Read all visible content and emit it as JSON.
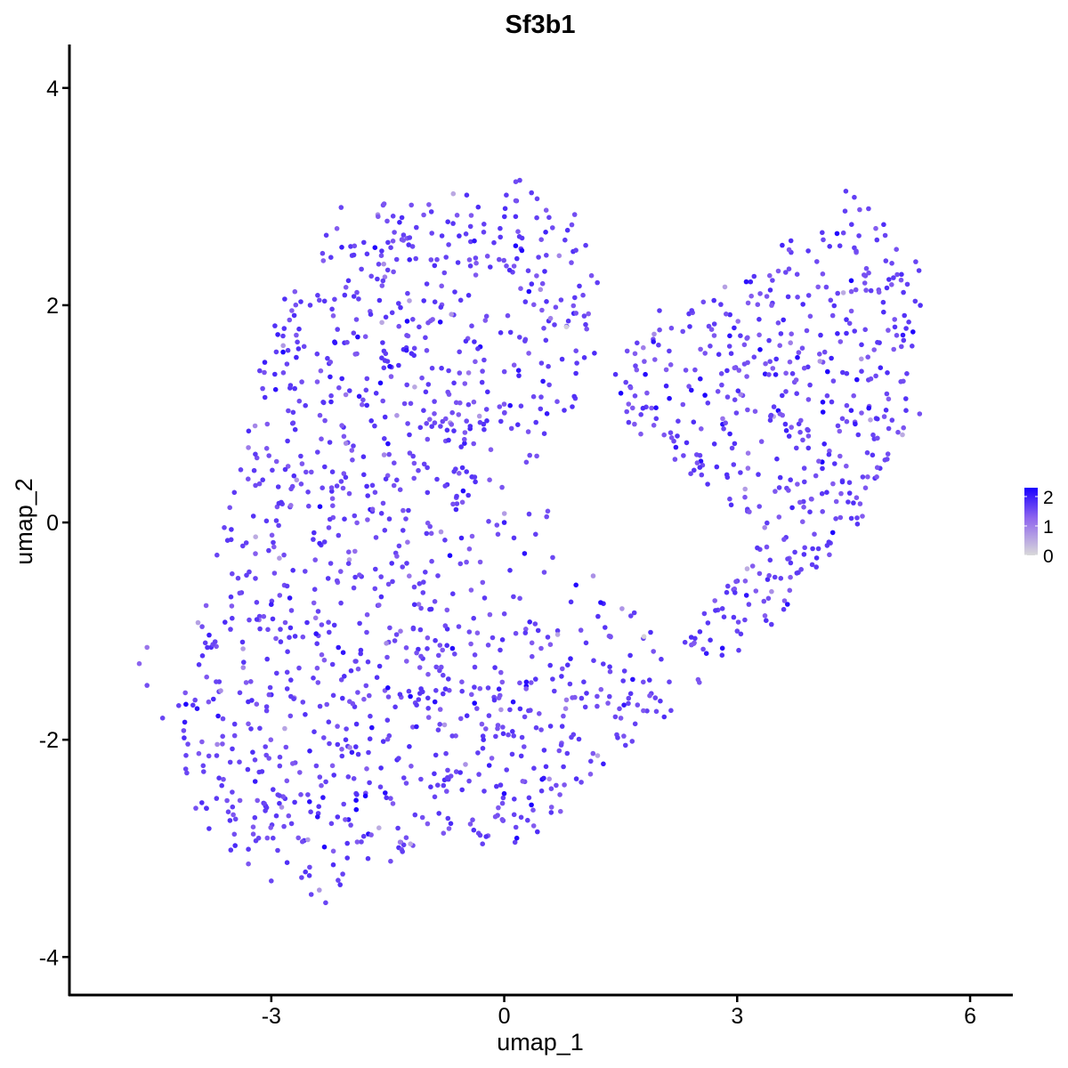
{
  "chart_data": {
    "type": "scatter",
    "title": "Sf3b1",
    "xlabel": "umap_1",
    "ylabel": "umap_2",
    "xlim": [
      -5.6,
      6.55
    ],
    "ylim": [
      -4.35,
      4.4
    ],
    "x_ticks": [
      -3,
      0,
      3,
      6
    ],
    "x_tick_labels": [
      "-3",
      "0",
      "3",
      "6"
    ],
    "y_ticks": [
      -4,
      -2,
      0,
      2,
      4
    ],
    "y_tick_labels": [
      "-4",
      "-2",
      "0",
      "2",
      "4"
    ],
    "grid": false,
    "legend": {
      "placement": "right",
      "type": "color-gradient",
      "title": "",
      "ticks": [
        0,
        1,
        2
      ],
      "tick_labels": [
        "0",
        "1",
        "2"
      ],
      "range": [
        0,
        2.3
      ],
      "low_color": "#d9d9d9",
      "high_color": "#1a00ff"
    },
    "colors": {
      "low": "#d9d9d9",
      "mid": "#8f66ee",
      "high": "#1a00ff"
    },
    "n_points_approx": 1800,
    "points_sample": [
      {
        "x": -4.7,
        "y": -1.3,
        "expr": 1.3
      },
      {
        "x": -4.6,
        "y": -1.15,
        "expr": 1.1
      },
      {
        "x": -4.6,
        "y": -1.5,
        "expr": 1.5
      },
      {
        "x": -4.4,
        "y": -1.8,
        "expr": 1.6
      },
      {
        "x": -3.0,
        "y": -3.3,
        "expr": 1.6
      },
      {
        "x": -2.3,
        "y": -3.5,
        "expr": 1.6
      },
      {
        "x": -2.5,
        "y": 2.0,
        "expr": 1.7
      },
      {
        "x": -2.1,
        "y": 2.9,
        "expr": 1.6
      },
      {
        "x": 0.2,
        "y": 3.15,
        "expr": 1.6
      },
      {
        "x": 0.8,
        "y": 1.8,
        "expr": 0.1
      },
      {
        "x": 0.35,
        "y": -2.6,
        "expr": 2.3
      },
      {
        "x": 1.8,
        "y": -1.05,
        "expr": 0.1
      },
      {
        "x": 4.4,
        "y": 3.05,
        "expr": 1.7
      },
      {
        "x": 5.3,
        "y": 2.4,
        "expr": 1.6
      },
      {
        "x": 5.35,
        "y": 1.0,
        "expr": 1.5
      },
      {
        "x": 2.0,
        "y": 1.95,
        "expr": 1.7
      },
      {
        "x": 3.0,
        "y": -1.0,
        "expr": 1.6
      },
      {
        "x": 3.6,
        "y": -0.8,
        "expr": 1.7
      },
      {
        "x": -3.7,
        "y": -0.3,
        "expr": 1.6
      },
      {
        "x": 0.0,
        "y": 0.0,
        "expr": 2.0
      }
    ]
  }
}
